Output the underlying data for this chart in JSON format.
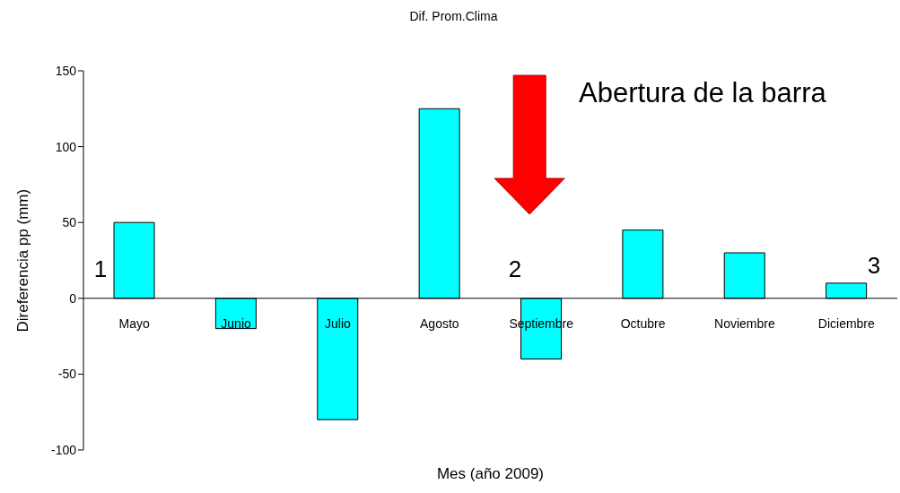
{
  "chart_data": {
    "type": "bar",
    "title": "Dif. Prom.Clima",
    "xlabel": "Mes (año 2009)",
    "ylabel": "Direferencia pp (mm)",
    "categories": [
      "Mayo",
      "Junio",
      "Julio",
      "Agosto",
      "Septiembre",
      "Octubre",
      "Noviembre",
      "Diciembre"
    ],
    "values": [
      50,
      -20,
      -80,
      125,
      -40,
      45,
      30,
      10
    ],
    "color": "#00ffff",
    "ylim": [
      -100,
      150
    ],
    "yticks": [
      -100,
      -50,
      0,
      50,
      100,
      150
    ],
    "grid": false,
    "legend": false,
    "annotations": [
      "Abertura de la barra",
      "1",
      "2",
      "3"
    ]
  }
}
